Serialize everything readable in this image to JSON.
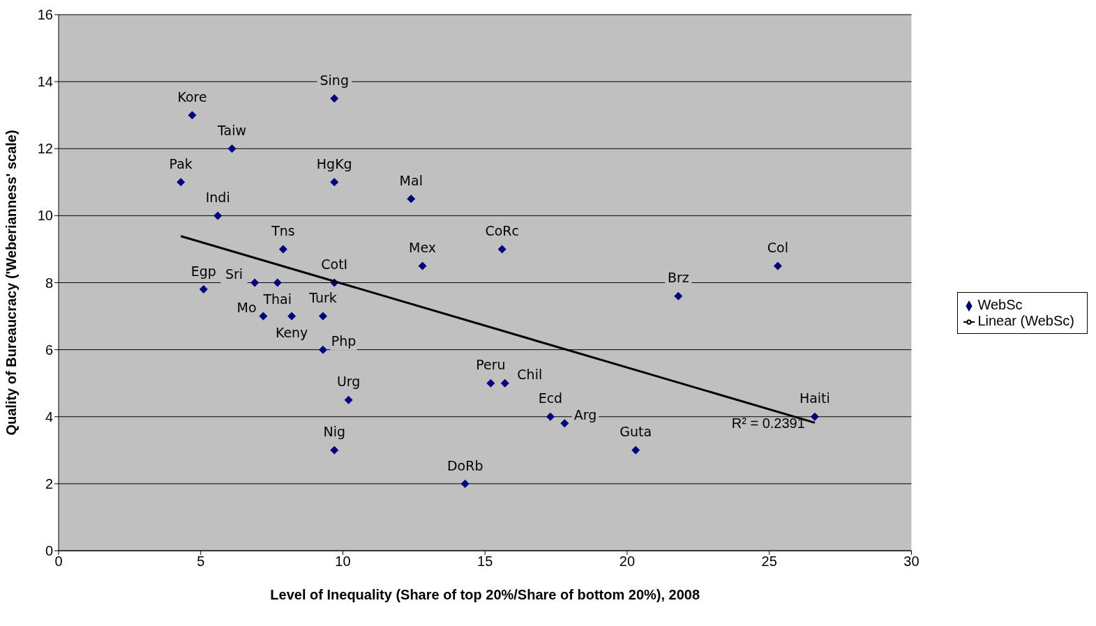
{
  "chart_data": {
    "type": "scatter",
    "xlabel": "Level of Inequality (Share of top 20%/Share of bottom 20%), 2008",
    "ylabel": "Quality of Bureaucracy ('Weberianness' scale)",
    "xlim": [
      0,
      30
    ],
    "xticks": [
      0,
      5,
      10,
      15,
      20,
      25,
      30
    ],
    "ylim": [
      0,
      16
    ],
    "yticks": [
      0,
      2,
      4,
      6,
      8,
      10,
      12,
      14,
      16
    ],
    "grid": "y",
    "legend": "right",
    "marker": "diamond",
    "series": [
      {
        "name": "WebSc",
        "type": "scatter",
        "color": "#000080",
        "x": [
          4.7,
          6.1,
          4.3,
          5.6,
          9.7,
          9.7,
          12.4,
          7.9,
          15.6,
          12.8,
          25.3,
          21.8,
          5.1,
          6.9,
          7.7,
          9.7,
          7.2,
          8.2,
          9.3,
          9.3,
          10.2,
          9.7,
          15.2,
          15.7,
          17.3,
          17.8,
          20.3,
          14.3,
          26.6
        ],
        "values": [
          13,
          12,
          11,
          10,
          13.5,
          11,
          10.5,
          9,
          9,
          8.5,
          8.5,
          7.6,
          7.8,
          8,
          8,
          8,
          7,
          7,
          7,
          6,
          4.5,
          3,
          5,
          5,
          4,
          3.8,
          3,
          2,
          4
        ]
      },
      {
        "name": "Linear (WebSc)",
        "type": "line",
        "marker": "none",
        "color": "#000000",
        "x": [
          4.3,
          26.6
        ],
        "values": [
          9.39,
          3.82
        ]
      }
    ],
    "annotations": [
      {
        "text": "Kore",
        "x": 4.7,
        "y": 13
      },
      {
        "text": "Taiw",
        "x": 6.1,
        "y": 12
      },
      {
        "text": "Pak",
        "x": 4.3,
        "y": 11
      },
      {
        "text": "Indi",
        "x": 5.6,
        "y": 10
      },
      {
        "text": "Sing",
        "x": 9.7,
        "y": 13.5
      },
      {
        "text": "HgKg",
        "x": 9.7,
        "y": 11
      },
      {
        "text": "Mal",
        "x": 12.4,
        "y": 10.5
      },
      {
        "text": "Tns",
        "x": 7.9,
        "y": 9
      },
      {
        "text": "CoRc",
        "x": 15.6,
        "y": 9
      },
      {
        "text": "Mex",
        "x": 12.8,
        "y": 8.5
      },
      {
        "text": "Col",
        "x": 25.3,
        "y": 8.5
      },
      {
        "text": "Brz",
        "x": 21.8,
        "y": 7.6
      },
      {
        "text": "Egp",
        "x": 5.1,
        "y": 7.8
      },
      {
        "text": "Sri",
        "x": 6.9,
        "y": 8
      },
      {
        "text": "Thai",
        "x": 7.7,
        "y": 8
      },
      {
        "text": "CotI",
        "x": 9.7,
        "y": 8
      },
      {
        "text": "Mo",
        "x": 7.2,
        "y": 7
      },
      {
        "text": "Keny",
        "x": 8.2,
        "y": 7
      },
      {
        "text": "Turk",
        "x": 9.3,
        "y": 7
      },
      {
        "text": "Php",
        "x": 9.3,
        "y": 6
      },
      {
        "text": "Urg",
        "x": 10.2,
        "y": 4.5
      },
      {
        "text": "Nig",
        "x": 9.7,
        "y": 3
      },
      {
        "text": "Peru",
        "x": 15.2,
        "y": 5
      },
      {
        "text": "Chil",
        "x": 15.7,
        "y": 5
      },
      {
        "text": "Ecd",
        "x": 17.3,
        "y": 4
      },
      {
        "text": "Arg",
        "x": 17.8,
        "y": 3.8
      },
      {
        "text": "Guta",
        "x": 20.3,
        "y": 3
      },
      {
        "text": "DoRb",
        "x": 14.3,
        "y": 2
      },
      {
        "text": "Haiti",
        "x": 26.6,
        "y": 4
      },
      "R² = 0.2391"
    ]
  }
}
